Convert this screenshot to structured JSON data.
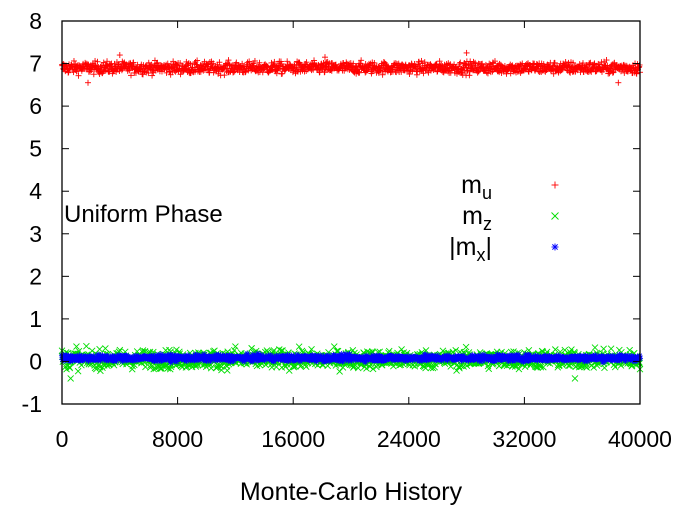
{
  "chart_data": {
    "type": "scatter",
    "title": "",
    "xlabel": "Monte-Carlo History",
    "ylabel": "",
    "xlim": [
      0,
      40000
    ],
    "ylim": [
      -1,
      8
    ],
    "x_ticks": [
      "0",
      "8000",
      "16000",
      "24000",
      "32000",
      "40000"
    ],
    "y_ticks": [
      "-1",
      "0",
      "1",
      "2",
      "3",
      "4",
      "5",
      "6",
      "7",
      "8"
    ],
    "grid": false,
    "legend_position": "right",
    "annotation": "Uniform Phase",
    "series": [
      {
        "legend_main": "m",
        "legend_sub": "u",
        "legend_suffix": "",
        "legend_prefix": "",
        "marker": "+",
        "color": "#ff0000",
        "x_range": [
          0,
          40000
        ],
        "mean": 6.9,
        "spread": 0.1,
        "outliers": [
          [
            1800,
            6.55
          ],
          [
            4000,
            7.2
          ],
          [
            18200,
            7.15
          ],
          [
            28000,
            7.25
          ],
          [
            38500,
            6.55
          ]
        ]
      },
      {
        "legend_main": "m",
        "legend_sub": "z",
        "legend_suffix": "",
        "legend_prefix": "",
        "marker": "x",
        "color": "#00dd00",
        "x_range": [
          0,
          40000
        ],
        "mean": 0.05,
        "spread": 0.15,
        "outliers": [
          [
            600,
            -0.4
          ],
          [
            1000,
            0.35
          ],
          [
            12000,
            0.35
          ],
          [
            35500,
            -0.4
          ],
          [
            38000,
            0.3
          ]
        ]
      },
      {
        "legend_main": "m",
        "legend_sub": "x",
        "legend_suffix": "|",
        "legend_prefix": "|",
        "marker": "*",
        "color": "#0000ff",
        "x_range": [
          0,
          40000
        ],
        "mean": 0.08,
        "spread": 0.05,
        "outliers": []
      }
    ]
  }
}
